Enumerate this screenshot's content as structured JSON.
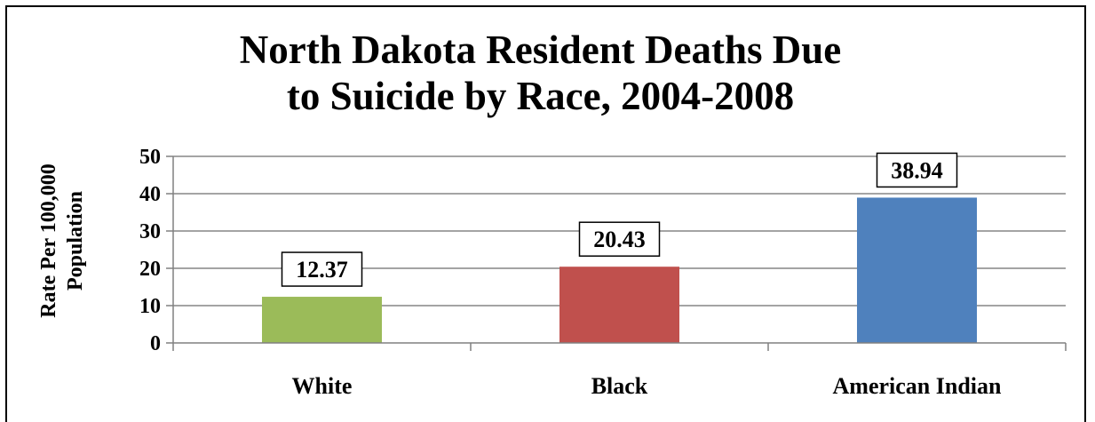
{
  "chart_data": {
    "type": "bar",
    "title_lines": [
      "North Dakota Resident Deaths Due",
      "to Suicide by Race, 2004-2008"
    ],
    "ylabel_lines": [
      "Rate Per 100,000",
      "Population"
    ],
    "xlabel": "",
    "categories": [
      "White",
      "Black",
      "American Indian"
    ],
    "values": [
      12.37,
      20.43,
      38.94
    ],
    "value_labels": [
      "12.37",
      "20.43",
      "38.94"
    ],
    "colors": [
      "#9BBB59",
      "#C0504D",
      "#4F81BD"
    ],
    "ylim": [
      0,
      50
    ],
    "yticks": [
      0,
      10,
      20,
      30,
      40,
      50
    ],
    "grid": true,
    "legend": "none"
  }
}
